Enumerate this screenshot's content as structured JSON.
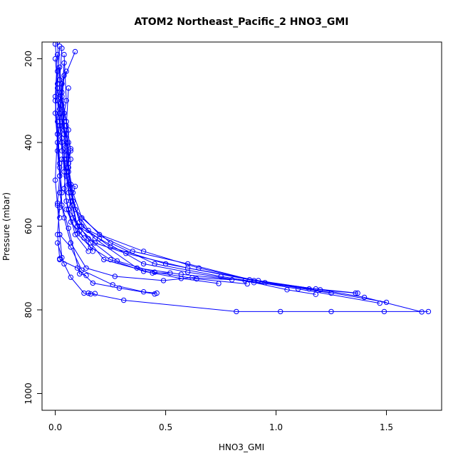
{
  "chart_data": {
    "type": "line",
    "title": "ATOM2 Northeast_Pacific_2 HNO3_GMI",
    "xlabel": "HNO3_GMI",
    "ylabel": "Pressure (mbar)",
    "xlim": [
      -0.06,
      1.75
    ],
    "ylim": [
      1040,
      160
    ],
    "y_reversed": true,
    "xticks": [
      0.0,
      0.5,
      1.0,
      1.5
    ],
    "xtick_labels": [
      "0.0",
      "0.5",
      "1.0",
      "1.5"
    ],
    "yticks": [
      200,
      400,
      600,
      800,
      1000
    ],
    "ytick_labels": [
      "200",
      "400",
      "600",
      "800",
      "1000"
    ],
    "grid": false,
    "legend": "none",
    "line_color": "#0000ff",
    "marker": "open-circle",
    "series": [
      {
        "points": [
          [
            0.05,
            230
          ],
          [
            0.04,
            240
          ],
          [
            0.03,
            300
          ],
          [
            0.04,
            330
          ],
          [
            0.06,
            370
          ],
          [
            0.05,
            430
          ],
          [
            0.06,
            470
          ],
          [
            0.08,
            550
          ],
          [
            0.1,
            600
          ],
          [
            0.2,
            630
          ],
          [
            0.4,
            690
          ],
          [
            0.6,
            710
          ],
          [
            0.9,
            735
          ],
          [
            1.37,
            760
          ]
        ]
      },
      {
        "points": [
          [
            0.03,
            260
          ],
          [
            0.02,
            320
          ],
          [
            0.04,
            380
          ],
          [
            0.05,
            440
          ],
          [
            0.07,
            500
          ],
          [
            0.09,
            560
          ],
          [
            0.15,
            610
          ],
          [
            0.35,
            660
          ],
          [
            0.6,
            690
          ],
          [
            0.9,
            730
          ],
          [
            1.15,
            750
          ],
          [
            1.5,
            782
          ]
        ]
      },
      {
        "points": [
          [
            0.02,
            280
          ],
          [
            0.03,
            340
          ],
          [
            0.05,
            400
          ],
          [
            0.06,
            460
          ],
          [
            0.08,
            520
          ],
          [
            0.12,
            580
          ],
          [
            0.25,
            640
          ],
          [
            0.45,
            690
          ],
          [
            0.75,
            720
          ],
          [
            1.1,
            750
          ],
          [
            1.47,
            784
          ]
        ]
      },
      {
        "points": [
          [
            0.01,
            300
          ],
          [
            0.02,
            360
          ],
          [
            0.03,
            420
          ],
          [
            0.05,
            480
          ],
          [
            0.07,
            540
          ],
          [
            0.1,
            600
          ],
          [
            0.18,
            640
          ],
          [
            0.32,
            665
          ],
          [
            0.6,
            700
          ],
          [
            0.92,
            730
          ],
          [
            1.2,
            752
          ],
          [
            1.36,
            760
          ]
        ]
      },
      {
        "points": [
          [
            0.04,
            210
          ],
          [
            0.03,
            290
          ],
          [
            0.05,
            350
          ],
          [
            0.07,
            420
          ],
          [
            0.05,
            480
          ],
          [
            0.08,
            540
          ],
          [
            0.12,
            600
          ],
          [
            0.25,
            650
          ],
          [
            0.5,
            690
          ],
          [
            0.88,
            728
          ],
          [
            1.18,
            750
          ],
          [
            1.4,
            770
          ],
          [
            1.66,
            805
          ]
        ]
      },
      {
        "points": [
          [
            0.02,
            330
          ],
          [
            0.03,
            390
          ],
          [
            0.05,
            470
          ],
          [
            0.09,
            560
          ],
          [
            0.2,
            620
          ],
          [
            0.4,
            660
          ],
          [
            0.65,
            700
          ],
          [
            0.95,
            735
          ],
          [
            1.25,
            760
          ]
        ]
      },
      {
        "points": [
          [
            0.06,
            270
          ],
          [
            0.05,
            360
          ],
          [
            0.06,
            450
          ],
          [
            0.07,
            520
          ],
          [
            0.11,
            590
          ],
          [
            0.18,
            630
          ],
          [
            0.37,
            700
          ],
          [
            0.57,
            715
          ],
          [
            0.86,
            730
          ],
          [
            1.05,
            752
          ],
          [
            1.18,
            763
          ]
        ]
      },
      {
        "points": [
          [
            0.03,
            440
          ],
          [
            0.02,
            520
          ],
          [
            0.04,
            580
          ],
          [
            0.07,
            640
          ],
          [
            0.14,
            700
          ],
          [
            0.27,
            720
          ],
          [
            0.49,
            730
          ],
          [
            0.62,
            723
          ],
          [
            0.8,
            728
          ]
        ]
      },
      {
        "points": [
          [
            0.08,
            580
          ],
          [
            0.15,
            630
          ],
          [
            0.28,
            683
          ],
          [
            0.45,
            710
          ],
          [
            0.64,
            726
          ],
          [
            0.87,
            738
          ]
        ]
      },
      {
        "points": [
          [
            0.02,
            620
          ],
          [
            0.07,
            650
          ],
          [
            0.12,
            705
          ],
          [
            0.26,
            740
          ],
          [
            0.4,
            757
          ],
          [
            0.46,
            760
          ]
        ]
      },
      {
        "points": [
          [
            0.02,
            680
          ],
          [
            0.1,
            700
          ],
          [
            0.17,
            736
          ],
          [
            0.29,
            748
          ],
          [
            0.45,
            762
          ]
        ]
      },
      {
        "points": [
          [
            0.05,
            560
          ],
          [
            0.1,
            618
          ],
          [
            0.16,
            650
          ],
          [
            0.25,
            680
          ],
          [
            0.4,
            708
          ],
          [
            0.57,
            725
          ],
          [
            0.74,
            737
          ]
        ]
      },
      {
        "points": [
          [
            0.01,
            640
          ],
          [
            0.04,
            690
          ],
          [
            0.07,
            722
          ],
          [
            0.13,
            760
          ],
          [
            0.16,
            762
          ],
          [
            0.18,
            761
          ]
        ]
      },
      {
        "points": [
          [
            0.09,
            183
          ],
          [
            0.03,
            260
          ],
          [
            0.02,
            340
          ],
          [
            0.01,
            420
          ],
          [
            0.02,
            480
          ]
        ]
      },
      {
        "points": [
          [
            0.15,
            760
          ],
          [
            0.31,
            777
          ],
          [
            0.82,
            804
          ],
          [
            1.02,
            804
          ],
          [
            1.25,
            804
          ],
          [
            1.49,
            804
          ],
          [
            1.69,
            804
          ]
        ]
      },
      {
        "points": [
          [
            0.01,
            160
          ],
          [
            0.02,
            250
          ],
          [
            0.01,
            350
          ],
          [
            0.02,
            450
          ],
          [
            0.03,
            550
          ],
          [
            0.06,
            605
          ],
          [
            0.11,
            714
          ],
          [
            0.14,
            718
          ]
        ]
      },
      {
        "points": [
          [
            0.0,
            165
          ],
          [
            0.01,
            230
          ],
          [
            0.0,
            300
          ],
          [
            0.01,
            380
          ],
          [
            0.02,
            460
          ],
          [
            0.03,
            520
          ],
          [
            0.02,
            555
          ],
          [
            0.01,
            620
          ],
          [
            0.02,
            678
          ]
        ]
      },
      {
        "points": [
          [
            0.02,
            170
          ],
          [
            0.01,
            270
          ],
          [
            0.02,
            330
          ],
          [
            0.03,
            400
          ],
          [
            0.04,
            470
          ],
          [
            0.05,
            540
          ],
          [
            0.07,
            590
          ],
          [
            0.13,
            628
          ]
        ]
      },
      {
        "points": [
          [
            0.03,
            175
          ],
          [
            0.02,
            250
          ],
          [
            0.03,
            310
          ],
          [
            0.04,
            370
          ],
          [
            0.06,
            400
          ],
          [
            0.07,
            415
          ],
          [
            0.05,
            460
          ],
          [
            0.04,
            510
          ],
          [
            0.06,
            560
          ],
          [
            0.09,
            620
          ],
          [
            0.15,
            660
          ]
        ]
      },
      {
        "points": [
          [
            0.01,
            190
          ],
          [
            0.0,
            290
          ],
          [
            0.01,
            380
          ],
          [
            0.0,
            490
          ],
          [
            0.01,
            550
          ],
          [
            0.02,
            620
          ],
          [
            0.03,
            675
          ]
        ]
      },
      {
        "points": [
          [
            0.0,
            200
          ],
          [
            0.01,
            260
          ],
          [
            0.0,
            330
          ],
          [
            0.01,
            400
          ],
          [
            0.02,
            480
          ],
          [
            0.01,
            545
          ],
          [
            0.02,
            580
          ]
        ]
      },
      {
        "points": [
          [
            0.02,
            220
          ],
          [
            0.03,
            280
          ],
          [
            0.04,
            350
          ],
          [
            0.05,
            410
          ],
          [
            0.07,
            440
          ],
          [
            0.06,
            500
          ],
          [
            0.09,
            505
          ],
          [
            0.06,
            560
          ],
          [
            0.11,
            600
          ],
          [
            0.16,
            640
          ],
          [
            0.22,
            680
          ],
          [
            0.44,
            712
          ],
          [
            0.52,
            712
          ]
        ]
      },
      {
        "points": [
          [
            0.04,
            190
          ],
          [
            0.05,
            300
          ],
          [
            0.03,
            360
          ],
          [
            0.05,
            380
          ],
          [
            0.04,
            440
          ],
          [
            0.05,
            480
          ],
          [
            0.06,
            520
          ],
          [
            0.08,
            580
          ],
          [
            0.11,
            612
          ],
          [
            0.17,
            660
          ]
        ]
      }
    ]
  }
}
